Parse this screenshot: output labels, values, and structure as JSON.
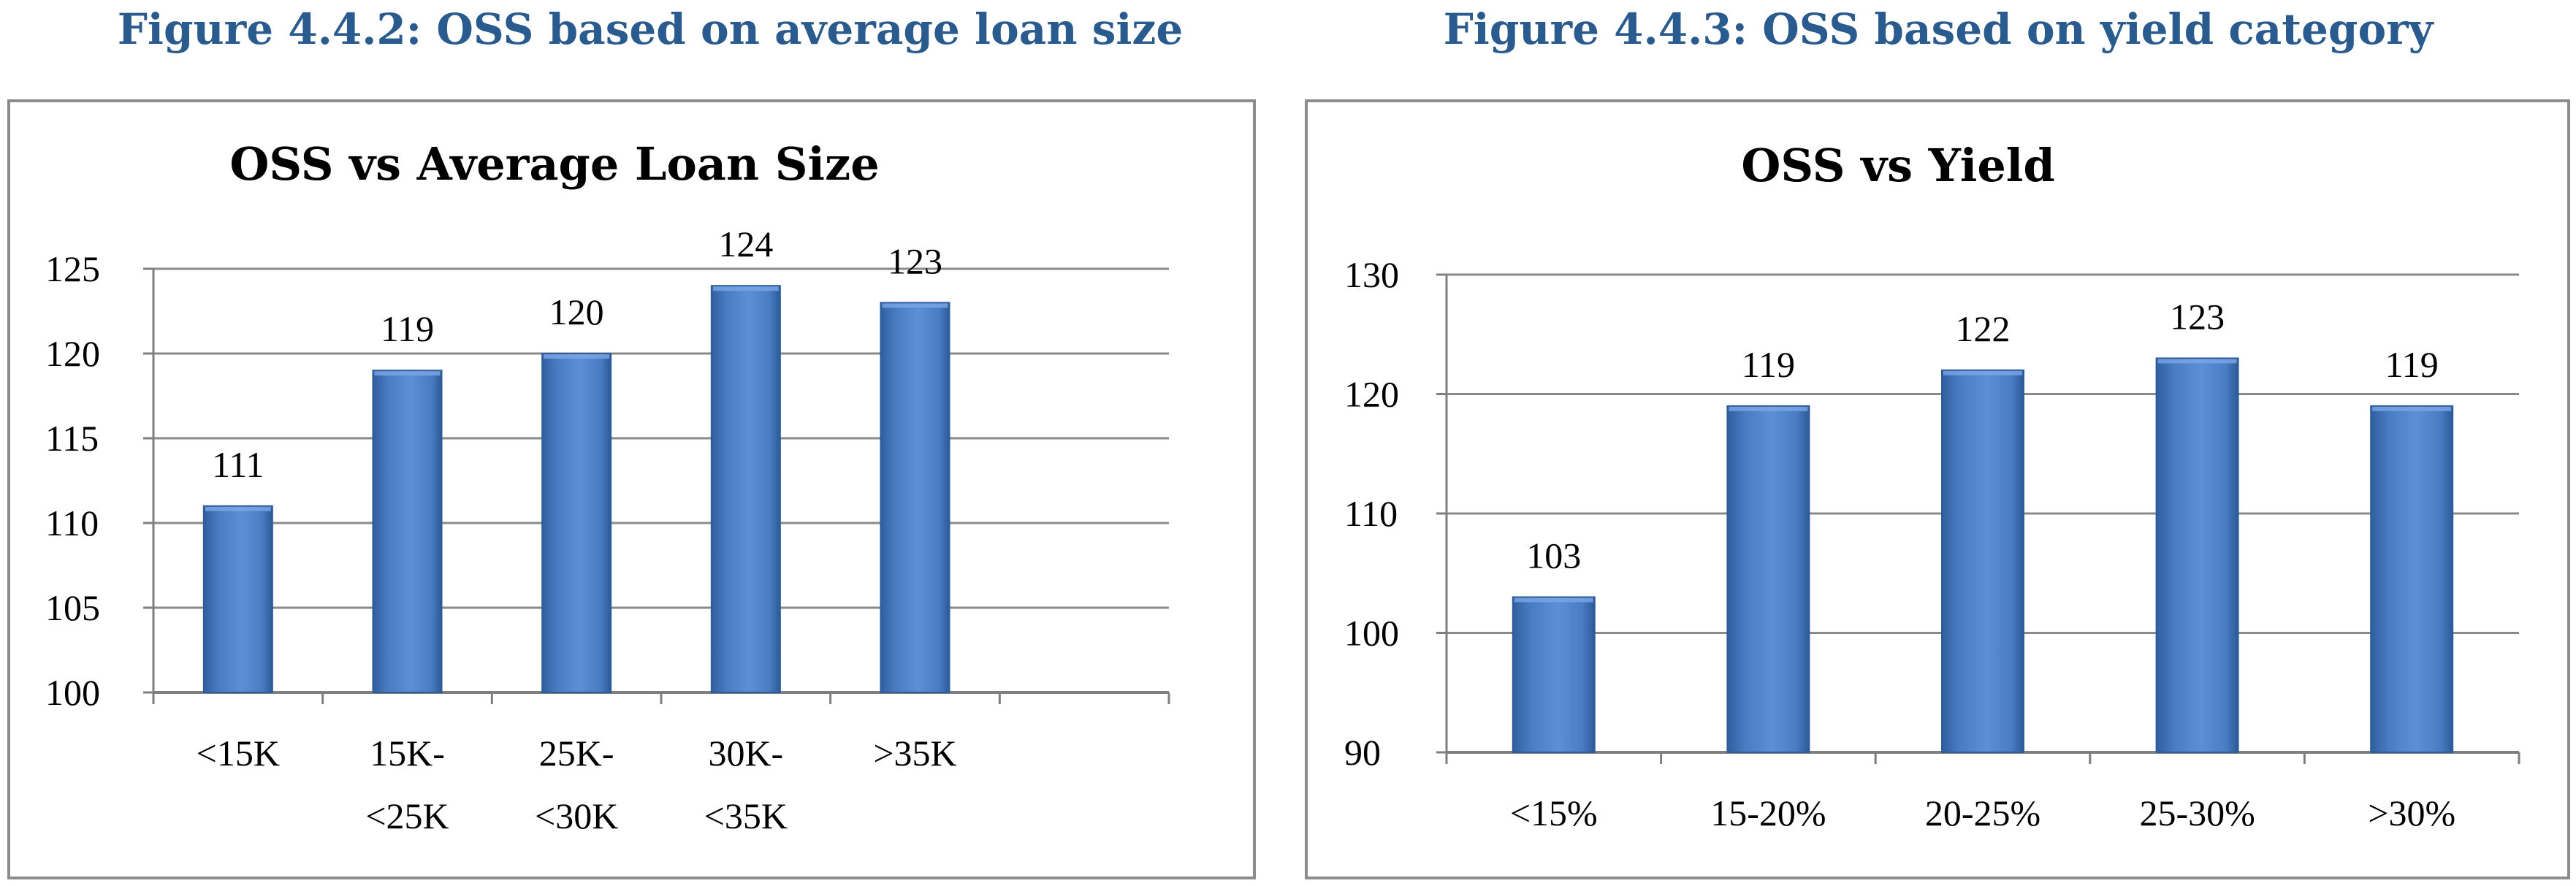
{
  "figures": [
    {
      "caption": "Figure 4.4.2: OSS based on average loan size"
    },
    {
      "caption": "Figure 4.4.3: OSS based on yield category"
    }
  ],
  "chart_data": [
    {
      "type": "bar",
      "title": "OSS vs Average Loan Size",
      "categories": [
        [
          "<15K"
        ],
        [
          "15K-",
          "<25K"
        ],
        [
          "25K-",
          "<30K"
        ],
        [
          "30K-",
          "<35K"
        ],
        [
          ">35K"
        ]
      ],
      "series": [
        {
          "values": [
            111,
            119,
            120,
            124,
            123
          ]
        }
      ],
      "data_labels": [
        "111",
        "119",
        "120",
        "124",
        "123"
      ],
      "xlabel": "",
      "ylabel": "",
      "ylim": [
        100,
        125
      ],
      "yticks": [
        "100",
        "105",
        "110",
        "115",
        "120",
        "125"
      ],
      "empty_slots": 1,
      "grid": true,
      "color": "#4a7cc4"
    },
    {
      "type": "bar",
      "title": "OSS vs Yield",
      "categories": [
        [
          "<15%"
        ],
        [
          "15-20%"
        ],
        [
          "20-25%"
        ],
        [
          "25-30%"
        ],
        [
          ">30%"
        ]
      ],
      "series": [
        {
          "values": [
            103,
            119,
            122,
            123,
            119
          ]
        }
      ],
      "data_labels": [
        "103",
        "119",
        "122",
        "123",
        "119"
      ],
      "xlabel": "",
      "ylabel": "",
      "ylim": [
        90,
        130
      ],
      "yticks": [
        "90",
        "100",
        "110",
        "120",
        "130"
      ],
      "empty_slots": 0,
      "grid": true,
      "color": "#4a7cc4"
    }
  ]
}
